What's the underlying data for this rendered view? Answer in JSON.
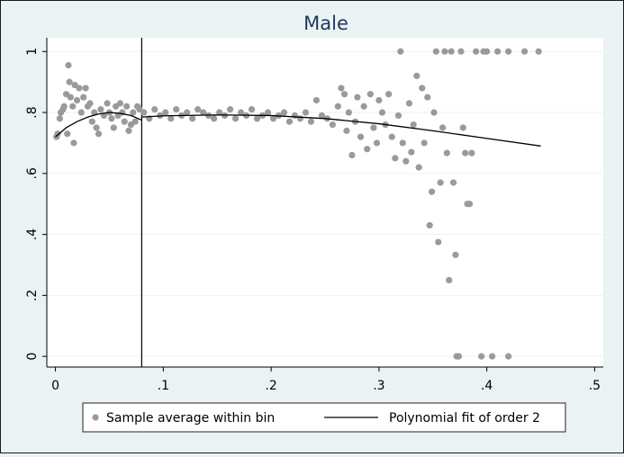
{
  "chart_data": {
    "type": "scatter",
    "title": "Male",
    "xlim": [
      -0.008,
      0.508
    ],
    "ylim": [
      -0.035,
      1.045
    ],
    "xticks": [
      0,
      {
        "value": 0.1,
        "label": ".1"
      },
      {
        "value": 0.2,
        "label": ".2"
      },
      {
        "value": 0.3,
        "label": ".3"
      },
      {
        "value": 0.4,
        "label": ".4"
      },
      {
        "value": 0.5,
        "label": ".5"
      }
    ],
    "yticks": [
      0,
      {
        "value": 0.2,
        "label": ".2"
      },
      {
        "value": 0.4,
        "label": ".4"
      },
      {
        "value": 0.6,
        "label": ".6"
      },
      {
        "value": 0.8,
        "label": ".8"
      },
      1
    ],
    "grid": true,
    "xline": 0.08,
    "legend": "bottom",
    "series": [
      {
        "name": "Sample average within bin",
        "type": "scatter",
        "color": "#9a9a9a",
        "x": [
          0.001,
          0.002,
          0.004,
          0.005,
          0.007,
          0.008,
          0.01,
          0.011,
          0.012,
          0.013,
          0.014,
          0.016,
          0.017,
          0.018,
          0.02,
          0.022,
          0.024,
          0.026,
          0.028,
          0.03,
          0.032,
          0.034,
          0.036,
          0.038,
          0.04,
          0.042,
          0.045,
          0.048,
          0.05,
          0.052,
          0.054,
          0.056,
          0.058,
          0.06,
          0.062,
          0.064,
          0.066,
          0.068,
          0.07,
          0.072,
          0.074,
          0.076,
          0.078,
          0.082,
          0.087,
          0.092,
          0.097,
          0.102,
          0.107,
          0.112,
          0.117,
          0.122,
          0.127,
          0.132,
          0.137,
          0.142,
          0.147,
          0.152,
          0.157,
          0.162,
          0.167,
          0.172,
          0.177,
          0.182,
          0.187,
          0.192,
          0.197,
          0.202,
          0.207,
          0.212,
          0.217,
          0.222,
          0.227,
          0.232,
          0.237,
          0.242,
          0.247,
          0.252,
          0.257,
          0.262,
          0.265,
          0.268,
          0.27,
          0.272,
          0.275,
          0.278,
          0.28,
          0.283,
          0.286,
          0.289,
          0.292,
          0.295,
          0.298,
          0.3,
          0.303,
          0.306,
          0.309,
          0.312,
          0.315,
          0.318,
          0.32,
          0.322,
          0.325,
          0.328,
          0.33,
          0.332,
          0.335,
          0.337,
          0.34,
          0.342,
          0.345,
          0.347,
          0.349,
          0.351,
          0.353,
          0.355,
          0.357,
          0.359,
          0.361,
          0.363,
          0.365,
          0.367,
          0.369,
          0.371,
          0.372,
          0.374,
          0.376,
          0.378,
          0.38,
          0.382,
          0.384,
          0.386,
          0.39,
          0.395,
          0.397,
          0.4,
          0.405,
          0.41,
          0.42,
          0.42,
          0.435,
          0.448
        ],
        "values": [
          0.72,
          0.73,
          0.78,
          0.8,
          0.81,
          0.82,
          0.86,
          0.73,
          0.955,
          0.9,
          0.85,
          0.82,
          0.7,
          0.89,
          0.84,
          0.88,
          0.8,
          0.85,
          0.88,
          0.82,
          0.83,
          0.77,
          0.8,
          0.75,
          0.73,
          0.81,
          0.79,
          0.83,
          0.8,
          0.78,
          0.75,
          0.82,
          0.79,
          0.83,
          0.8,
          0.77,
          0.82,
          0.74,
          0.76,
          0.8,
          0.77,
          0.82,
          0.81,
          0.8,
          0.78,
          0.81,
          0.79,
          0.8,
          0.78,
          0.81,
          0.79,
          0.8,
          0.78,
          0.81,
          0.8,
          0.79,
          0.78,
          0.8,
          0.79,
          0.81,
          0.78,
          0.8,
          0.79,
          0.81,
          0.78,
          0.79,
          0.8,
          0.78,
          0.79,
          0.8,
          0.77,
          0.79,
          0.78,
          0.8,
          0.77,
          0.84,
          0.79,
          0.78,
          0.76,
          0.82,
          0.88,
          0.86,
          0.74,
          0.8,
          0.66,
          0.77,
          0.85,
          0.72,
          0.82,
          0.68,
          0.86,
          0.75,
          0.7,
          0.84,
          0.8,
          0.76,
          0.86,
          0.72,
          0.65,
          0.79,
          1,
          0.7,
          0.64,
          0.83,
          0.67,
          0.76,
          0.92,
          0.62,
          0.88,
          0.7,
          0.85,
          0.43,
          0.54,
          0.8,
          1,
          0.375,
          0.57,
          0.75,
          1,
          0.667,
          0.25,
          1,
          0.57,
          0.333,
          0,
          0,
          1,
          0.75,
          0.667,
          0.5,
          0.5,
          0.667,
          1,
          0,
          1,
          1,
          0,
          1,
          1,
          0,
          1,
          1
        ]
      },
      {
        "name": "Polynomial fit of order 2",
        "type": "line",
        "color": "#000000",
        "x": [
          0,
          0.01,
          0.02,
          0.03,
          0.04,
          0.05,
          0.06,
          0.07,
          0.08,
          0.08,
          0.08,
          0.1,
          0.15,
          0.2,
          0.25,
          0.3,
          0.35,
          0.4,
          0.45
        ],
        "values": [
          0.72,
          0.75,
          0.77,
          0.785,
          0.795,
          0.8,
          0.797,
          0.79,
          0.775,
          null,
          0.785,
          0.789,
          0.792,
          0.79,
          0.78,
          0.763,
          0.74,
          0.715,
          0.69
        ]
      }
    ]
  }
}
